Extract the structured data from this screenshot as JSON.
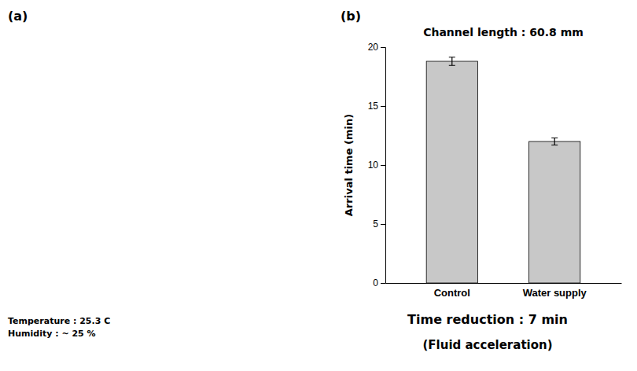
{
  "chart_data": {
    "type": "bar",
    "title": "Channel length : 60.8 mm",
    "ylabel": "Arrival time (min)",
    "categories": [
      "Control",
      "Water supply"
    ],
    "values": [
      18.8,
      12.0
    ],
    "errors": [
      0.35,
      0.3
    ],
    "color": "#c8c8c8",
    "ylim": [
      0,
      20
    ],
    "yticks": [
      0,
      5,
      10,
      15,
      20
    ],
    "grid": false,
    "subtitle": [
      "Time reduction : 7 min",
      "(Fluid acceleration)"
    ],
    "annotations": [
      "(a)",
      "(b)",
      "Temperature : 25.3 C",
      "Humidity : ~ 25 %"
    ]
  }
}
